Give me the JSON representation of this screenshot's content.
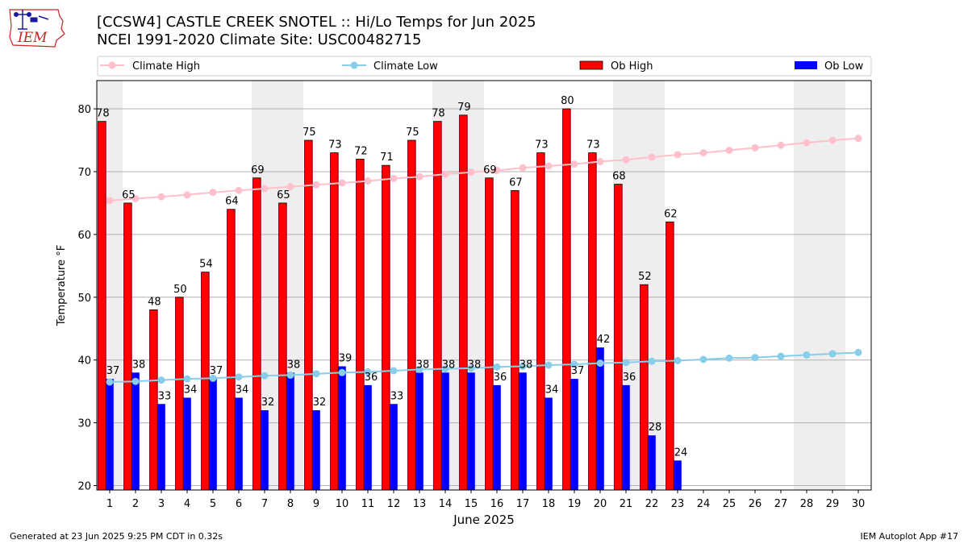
{
  "header": {
    "title_line1": "[CCSW4] CASTLE CREEK SNOTEL :: Hi/Lo Temps for Jun 2025",
    "title_line2": "NCEI 1991-2020 Climate Site: USC00482715",
    "logo_text": "IEM",
    "logo_icon": "iowa-state-map-with-weather-station-icon"
  },
  "footer": {
    "generated": "Generated at 23 Jun 2025 9:25 PM CDT in 0.32s",
    "app": "IEM Autoplot App #17"
  },
  "chart_data": {
    "type": "bar",
    "xlabel": "June 2025",
    "ylabel": "Temperature °F",
    "ylim": [
      19.3,
      84.5
    ],
    "yticks": [
      20,
      30,
      40,
      50,
      60,
      70,
      80
    ],
    "grid": true,
    "legend_position": "top",
    "days": [
      1,
      2,
      3,
      4,
      5,
      6,
      7,
      8,
      9,
      10,
      11,
      12,
      13,
      14,
      15,
      16,
      17,
      18,
      19,
      20,
      21,
      22,
      23,
      24,
      25,
      26,
      27,
      28,
      29,
      30
    ],
    "weekend_shading_days": [
      1,
      7,
      8,
      14,
      15,
      21,
      22,
      28,
      29
    ],
    "series": [
      {
        "name": "Climate High",
        "kind": "line",
        "color": "#ffc0cb",
        "values": [
          65.4,
          65.7,
          66.0,
          66.3,
          66.7,
          67.0,
          67.3,
          67.6,
          67.9,
          68.2,
          68.5,
          68.9,
          69.2,
          69.6,
          69.9,
          70.2,
          70.6,
          70.9,
          71.2,
          71.6,
          71.9,
          72.3,
          72.7,
          73.0,
          73.4,
          73.8,
          74.2,
          74.6,
          75.0,
          75.3
        ]
      },
      {
        "name": "Climate Low",
        "kind": "line",
        "color": "#87ceeb",
        "values": [
          36.5,
          36.6,
          36.8,
          37.0,
          37.1,
          37.3,
          37.5,
          37.6,
          37.8,
          38.0,
          38.1,
          38.3,
          38.5,
          38.6,
          38.7,
          38.9,
          39.0,
          39.2,
          39.3,
          39.5,
          39.6,
          39.8,
          39.9,
          40.1,
          40.3,
          40.4,
          40.6,
          40.8,
          41.0,
          41.2
        ]
      },
      {
        "name": "Ob High",
        "kind": "bar",
        "color": "#ff0000",
        "values": [
          78,
          65,
          48,
          50,
          54,
          64,
          69,
          65,
          75,
          73,
          72,
          71,
          75,
          78,
          79,
          69,
          67,
          73,
          80,
          73,
          68,
          52,
          62
        ],
        "labels": [
          "78",
          "65",
          "48",
          "50",
          "54",
          "64",
          "69",
          "65",
          "75",
          "73",
          "72",
          "71",
          "75",
          "78",
          "79",
          "69",
          "67",
          "73",
          "80",
          "73",
          "68",
          "52",
          "62"
        ]
      },
      {
        "name": "Ob Low",
        "kind": "bar",
        "color": "#0000ff",
        "values": [
          37,
          38,
          33,
          34,
          37,
          34,
          32,
          38,
          32,
          39,
          36,
          33,
          38,
          38,
          38,
          36,
          38,
          34,
          37,
          42,
          36,
          28,
          24
        ],
        "labels": [
          "37",
          "38",
          "33",
          "34",
          "37",
          "34",
          "32",
          "38",
          "32",
          "39",
          "36",
          "33",
          "38",
          "38",
          "38",
          "36",
          "38",
          "34",
          "37",
          "42",
          "36",
          "28",
          "24"
        ]
      }
    ]
  }
}
